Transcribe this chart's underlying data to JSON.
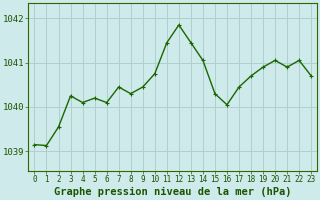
{
  "x": [
    0,
    1,
    2,
    3,
    4,
    5,
    6,
    7,
    8,
    9,
    10,
    11,
    12,
    13,
    14,
    15,
    16,
    17,
    18,
    19,
    20,
    21,
    22,
    23
  ],
  "y": [
    1039.15,
    1039.13,
    1039.55,
    1040.25,
    1040.1,
    1040.2,
    1040.1,
    1040.45,
    1040.3,
    1040.45,
    1040.75,
    1041.45,
    1041.85,
    1041.45,
    1041.05,
    1040.3,
    1040.05,
    1040.45,
    1040.7,
    1040.9,
    1041.05,
    1040.9,
    1041.05,
    1040.7
  ],
  "line_color": "#1a6600",
  "marker_color": "#1a6600",
  "bg_color": "#ceeaea",
  "grid_color": "#b0d0d0",
  "xlabel": "Graphe pression niveau de la mer (hPa)",
  "xlabel_fontsize": 7.5,
  "ylabel_ticks": [
    1039,
    1040,
    1041,
    1042
  ],
  "ytick_fontsize": 6.5,
  "xtick_fontsize": 5.5,
  "ylim": [
    1038.55,
    1042.35
  ],
  "xlim": [
    -0.5,
    23.5
  ],
  "xticks": [
    0,
    1,
    2,
    3,
    4,
    5,
    6,
    7,
    8,
    9,
    10,
    11,
    12,
    13,
    14,
    15,
    16,
    17,
    18,
    19,
    20,
    21,
    22,
    23
  ],
  "spine_color": "#336600",
  "marker_size": 2.5,
  "line_width": 1.0,
  "axis_label_color": "#1a5500"
}
